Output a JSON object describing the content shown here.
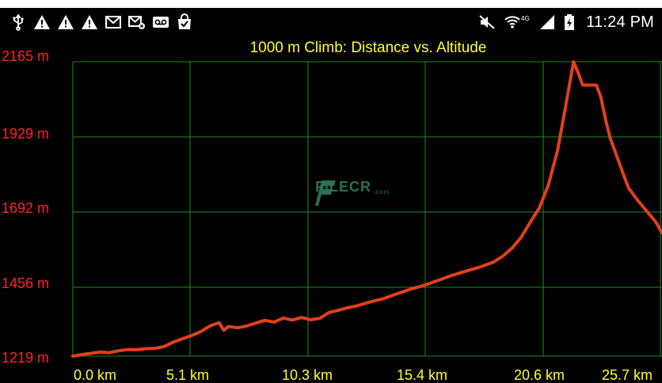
{
  "status_bar": {
    "time": "11:24 PM",
    "network": "4G",
    "left_icons": [
      "usb-icon",
      "warning-icon",
      "warning-icon",
      "warning-icon",
      "mail-icon",
      "mail-failed-icon",
      "voicemail-icon",
      "shopping-bag-check-icon"
    ],
    "right_icons": [
      "mute-icon",
      "wifi-icon",
      "signal-icon",
      "battery-charging-icon"
    ]
  },
  "watermark": {
    "text": "FILECR",
    "suffix": ".com"
  },
  "chart_data": {
    "type": "line",
    "title": "1000 m Climb: Distance vs. Altitude",
    "xlabel": "",
    "ylabel": "",
    "x_ticks": [
      "0.0 km",
      "5.1 km",
      "10.3 km",
      "15.4 km",
      "20.6 km",
      "25.7 km"
    ],
    "y_ticks": [
      "1219 m",
      "1456 m",
      "1692 m",
      "1929 m",
      "2165 m"
    ],
    "xlim": [
      0,
      25.7
    ],
    "ylim": [
      1219,
      2165
    ],
    "grid": true,
    "colors": {
      "line": "#e2401c",
      "grid": "#1e8c1e",
      "tick_y": "#ff2222",
      "tick_x": "#ffff33",
      "title": "#ffff33"
    },
    "series": [
      {
        "x": [
          0,
          0.5,
          0.8,
          1.2,
          1.6,
          2.0,
          2.4,
          2.8,
          3.2,
          3.6,
          4.0,
          4.4,
          4.8,
          5.2,
          5.6,
          6.0,
          6.4,
          6.6,
          6.8,
          7.2,
          7.6,
          8.0,
          8.4,
          8.8,
          9.2,
          9.6,
          10.0,
          10.4,
          10.8,
          11.2,
          11.6,
          12.0,
          12.4,
          13.0,
          13.6,
          14.2,
          14.8,
          15.4,
          16.0,
          16.6,
          17.2,
          17.8,
          18.4,
          18.8,
          19.2,
          19.6,
          20.0,
          20.4,
          20.8,
          21.2,
          21.6,
          21.9,
          22.1,
          22.3,
          22.5,
          22.9,
          23.1,
          23.3,
          23.5,
          23.9,
          24.3,
          24.7,
          25.1,
          25.5,
          25.9
        ],
        "y": [
          1219,
          1225,
          1228,
          1232,
          1230,
          1236,
          1240,
          1239,
          1243,
          1244,
          1250,
          1264,
          1275,
          1285,
          1298,
          1316,
          1326,
          1302,
          1314,
          1310,
          1316,
          1325,
          1334,
          1328,
          1341,
          1335,
          1343,
          1336,
          1340,
          1359,
          1366,
          1374,
          1380,
          1393,
          1404,
          1420,
          1435,
          1447,
          1463,
          1479,
          1492,
          1505,
          1521,
          1540,
          1565,
          1600,
          1648,
          1695,
          1768,
          1880,
          2040,
          2165,
          2130,
          2090,
          2090,
          2090,
          2050,
          1980,
          1920,
          1840,
          1760,
          1720,
          1685,
          1650,
          1615
        ]
      }
    ]
  }
}
